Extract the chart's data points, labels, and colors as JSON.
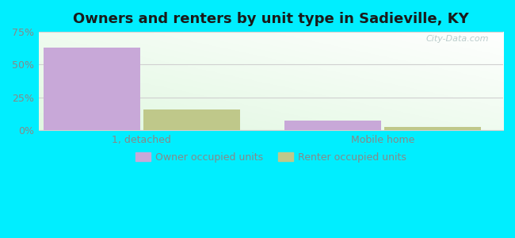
{
  "title": "Owners and renters by unit type in Sadieville, KY",
  "categories": [
    "1, detached",
    "Mobile home"
  ],
  "series": [
    {
      "name": "Owner occupied units",
      "values": [
        63.0,
        7.5
      ],
      "color": "#c8a8d8"
    },
    {
      "name": "Renter occupied units",
      "values": [
        16.0,
        2.5
      ],
      "color": "#bfc88a"
    }
  ],
  "ylim": [
    0,
    75
  ],
  "yticks": [
    0,
    25,
    50,
    75
  ],
  "yticklabels": [
    "0%",
    "25%",
    "50%",
    "75%"
  ],
  "background_color": "#00eeff",
  "bar_width": 0.28,
  "group_positions": [
    0.3,
    1.0
  ],
  "xlim": [
    0.0,
    1.35
  ],
  "watermark": "City-Data.com",
  "title_fontsize": 13,
  "legend_fontsize": 9,
  "tick_fontsize": 9,
  "grid_color": "#d0d0d0",
  "tick_color": "#888888",
  "title_color": "#1a1a1a"
}
